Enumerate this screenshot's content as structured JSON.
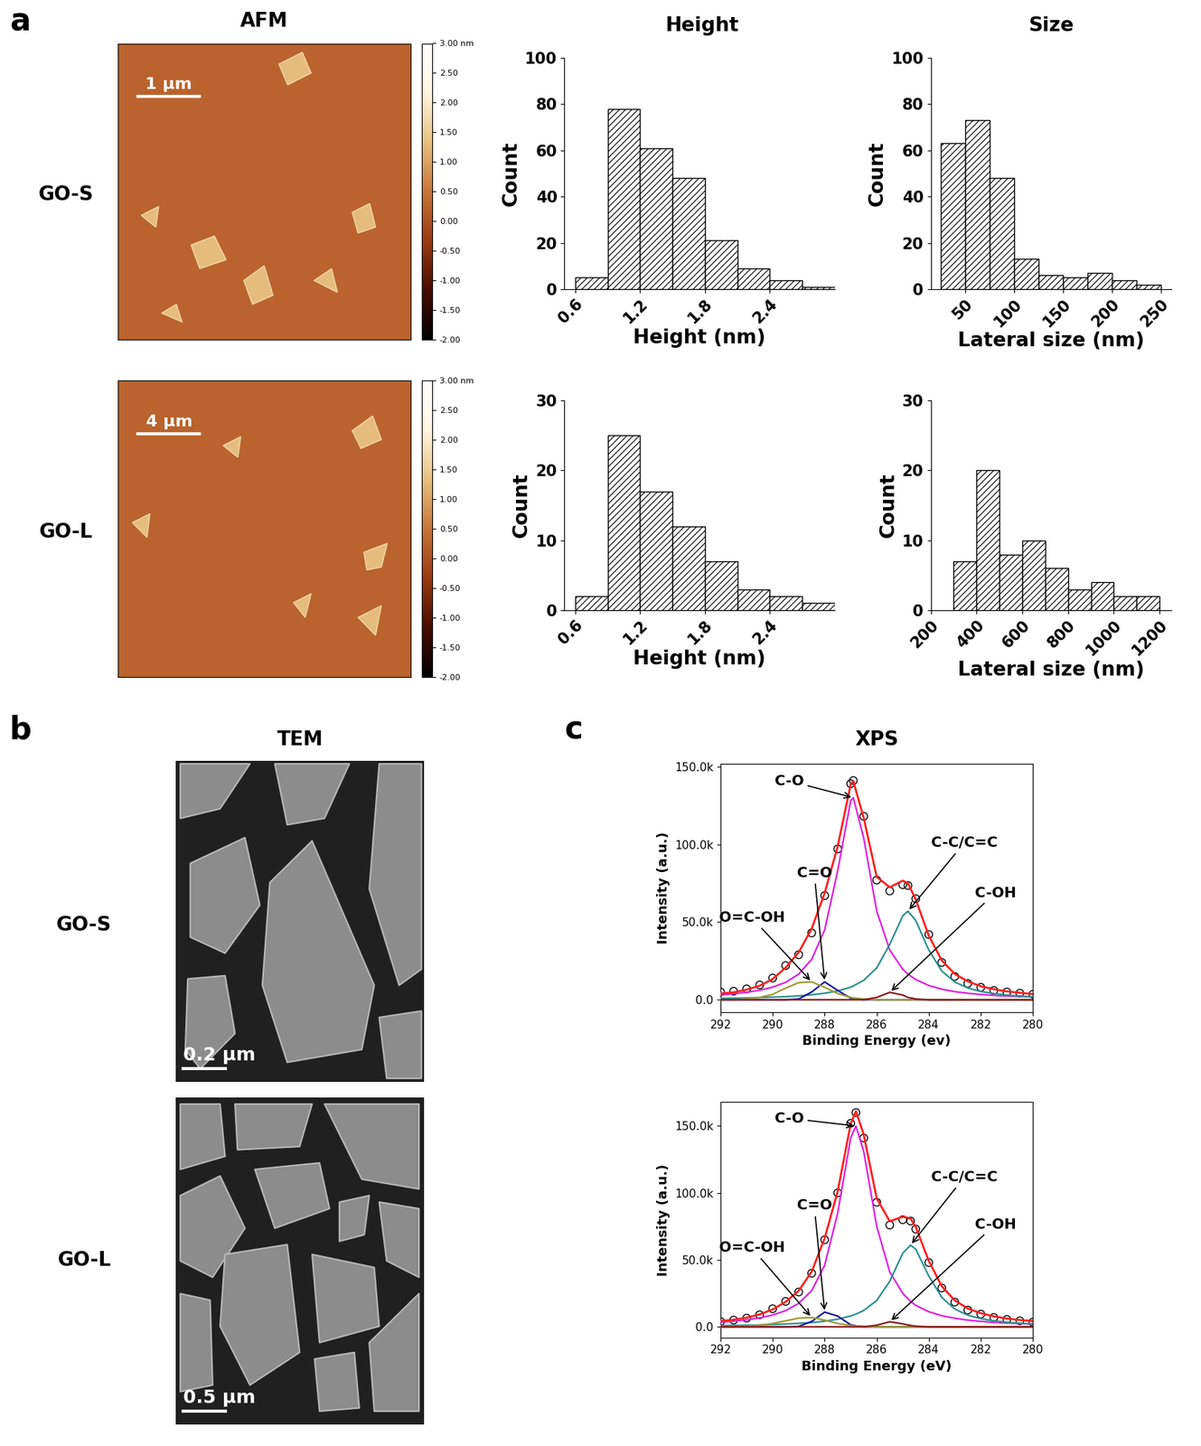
{
  "panel_labels": [
    "a",
    "b",
    "c"
  ],
  "headers": [
    "AFM",
    "Height",
    "Size",
    "TEM",
    "XPS"
  ],
  "row_labels": [
    "GO-S",
    "GO-L"
  ],
  "afm": [
    {
      "scale_bar": "1 μm",
      "clim": [
        -2,
        3
      ],
      "cticks": [
        {
          "value": 3,
          "label": "3.00 nm"
        },
        {
          "value": 2.5,
          "label": "2.50"
        },
        {
          "value": 2,
          "label": "2.00"
        },
        {
          "value": 1.5,
          "label": "1.50"
        },
        {
          "value": 1,
          "label": "1.00"
        },
        {
          "value": 0.5,
          "label": "0.50"
        },
        {
          "value": 0,
          "label": "0.00"
        },
        {
          "value": -0.5,
          "label": "-0.50"
        },
        {
          "value": -1,
          "label": "-1.00"
        },
        {
          "value": -1.5,
          "label": "-1.50"
        },
        {
          "value": -2,
          "label": "-2.00"
        }
      ]
    },
    {
      "scale_bar": "4 μm",
      "clim": [
        -2,
        3
      ],
      "cticks": [
        {
          "value": 3,
          "label": "3.00 nm"
        },
        {
          "value": 2.5,
          "label": "2.50"
        },
        {
          "value": 2,
          "label": "2.00"
        },
        {
          "value": 1.5,
          "label": "1.50"
        },
        {
          "value": 1,
          "label": "1.00"
        },
        {
          "value": 0.5,
          "label": "0.50"
        },
        {
          "value": 0,
          "label": "0.00"
        },
        {
          "value": -0.5,
          "label": "-0.50"
        },
        {
          "value": -1,
          "label": "-1.00"
        },
        {
          "value": -1.5,
          "label": "-1.50"
        },
        {
          "value": -2,
          "label": "-2.00"
        }
      ]
    }
  ],
  "tem": [
    {
      "scale_bar": "0.2 μm"
    },
    {
      "scale_bar": "0.5 μm"
    }
  ],
  "chart_data": [
    {
      "type": "histogram",
      "xlabel": "Height (nm)",
      "ylabel": "Count",
      "color": "#000000",
      "bins": [
        0.6,
        0.9,
        1.2,
        1.5,
        1.8,
        2.1,
        2.4,
        2.7,
        3.0
      ],
      "counts": [
        5,
        78,
        61,
        48,
        21,
        9,
        4,
        1
      ],
      "xlim": [
        0.5,
        3.0
      ],
      "xticks": [
        0.6,
        1.2,
        1.8,
        2.4
      ],
      "ylim": [
        0,
        100
      ],
      "yticks": [
        0,
        20,
        40,
        60,
        80,
        100
      ]
    },
    {
      "type": "histogram",
      "xlabel": "Lateral size (nm)",
      "ylabel": "Count",
      "color": "#000000",
      "bins": [
        25,
        50,
        75,
        100,
        125,
        150,
        175,
        200,
        225,
        250
      ],
      "counts": [
        63,
        73,
        48,
        13,
        6,
        5,
        7,
        4,
        2
      ],
      "xlim": [
        15,
        260
      ],
      "xticks": [
        50,
        100,
        150,
        200,
        250
      ],
      "ylim": [
        0,
        100
      ],
      "yticks": [
        0,
        20,
        40,
        60,
        80,
        100
      ]
    },
    {
      "type": "histogram",
      "xlabel": "Height (nm)",
      "ylabel": "Count",
      "color": "#000000",
      "bins": [
        0.6,
        0.9,
        1.2,
        1.5,
        1.8,
        2.1,
        2.4,
        2.7,
        3.0
      ],
      "counts": [
        2,
        25,
        17,
        12,
        7,
        3,
        2,
        1
      ],
      "xlim": [
        0.5,
        3.0
      ],
      "xticks": [
        0.6,
        1.2,
        1.8,
        2.4
      ],
      "ylim": [
        0,
        30
      ],
      "yticks": [
        0,
        10,
        20,
        30
      ]
    },
    {
      "type": "histogram",
      "xlabel": "Lateral size (nm)",
      "ylabel": "Count",
      "color": "#000000",
      "bins": [
        300,
        400,
        500,
        600,
        700,
        800,
        900,
        1000,
        1100,
        1200
      ],
      "counts": [
        7,
        20,
        8,
        10,
        6,
        3,
        4,
        2,
        2
      ],
      "xlim": [
        200,
        1250
      ],
      "xticks": [
        200,
        400,
        600,
        800,
        1000,
        1200
      ],
      "ylim": [
        0,
        30
      ],
      "yticks": [
        0,
        10,
        20,
        30
      ]
    },
    {
      "type": "line",
      "xlabel": "Binding Energy (ev)",
      "ylabel": "Intensity (a.u.)",
      "x": [
        292,
        291.5,
        291,
        290.5,
        290,
        289.5,
        289,
        288.5,
        288,
        287.5,
        287,
        286.9,
        286.5,
        286,
        285.5,
        285,
        284.8,
        284.5,
        284,
        283.5,
        283,
        282.5,
        282,
        281.5,
        281,
        280.5,
        280
      ],
      "xlim": [
        292,
        280
      ],
      "xticks": [
        292,
        290,
        288,
        286,
        284,
        282,
        280
      ],
      "ylim": [
        -8000,
        152000
      ],
      "yticks": [
        {
          "value": 0,
          "label": "0.0"
        },
        {
          "value": 50000,
          "label": "50.0k"
        },
        {
          "value": 100000,
          "label": "100.0k"
        },
        {
          "value": 150000,
          "label": "150.0k"
        }
      ],
      "series": [
        {
          "name": "C-O",
          "color": "#e020e0",
          "values": [
            3100,
            3800,
            4800,
            6100,
            8100,
            11200,
            16500,
            26000,
            45000,
            83000,
            128000,
            130000,
            104000,
            57000,
            32000,
            19600,
            16500,
            13000,
            9200,
            6800,
            5200,
            4200,
            3400,
            2800,
            2400,
            2100,
            1800
          ]
        },
        {
          "name": "C-C/C=C",
          "color": "#2a9090",
          "values": [
            900,
            1000,
            1200,
            1400,
            1700,
            2000,
            2500,
            3200,
            4200,
            5700,
            8100,
            8900,
            12500,
            20500,
            35600,
            54000,
            57000,
            51000,
            32000,
            18500,
            11400,
            7600,
            5300,
            4000,
            3000,
            2400,
            1900
          ]
        },
        {
          "name": "C=O",
          "color": "#1a1aa0",
          "values": [
            0,
            0,
            0,
            0,
            0,
            0,
            500,
            5000,
            11500,
            6000,
            1000,
            500,
            0,
            0,
            0,
            0,
            0,
            0,
            0,
            0,
            0,
            0,
            0,
            0,
            0,
            0,
            0
          ]
        },
        {
          "name": "O=C-OH",
          "color": "#9a9a30",
          "values": [
            0,
            0,
            500,
            1500,
            3500,
            7500,
            11000,
            11500,
            8000,
            4000,
            1500,
            1200,
            500,
            0,
            0,
            0,
            0,
            0,
            0,
            0,
            0,
            0,
            0,
            0,
            0,
            0,
            0
          ]
        },
        {
          "name": "C-OH",
          "color": "#8b1a1a",
          "values": [
            0,
            0,
            0,
            0,
            0,
            0,
            0,
            0,
            0,
            0,
            0,
            0,
            0,
            1500,
            4800,
            3000,
            1500,
            500,
            0,
            0,
            0,
            0,
            0,
            0,
            0,
            0,
            0
          ]
        },
        {
          "color": "#ff2020",
          "values": [
            4000,
            4800,
            6500,
            9000,
            13300,
            20700,
            30500,
            45700,
            68700,
            98700,
            138600,
            140600,
            117000,
            79000,
            72400,
            76600,
            75000,
            64500,
            41200,
            25300,
            16600,
            11800,
            8700,
            6800,
            5400,
            4500,
            3700
          ]
        },
        {
          "type": "scatter",
          "marker": "circle",
          "color": "#000000",
          "values": [
            5000,
            5500,
            7000,
            9500,
            14000,
            22000,
            29000,
            43000,
            67000,
            97000,
            139000,
            141000,
            118000,
            77000,
            70000,
            74000,
            73500,
            65000,
            42000,
            24000,
            15000,
            10500,
            8000,
            6000,
            5000,
            4200,
            3500
          ]
        }
      ]
    },
    {
      "type": "line",
      "xlabel": "Binding Energy (eV)",
      "ylabel": "Intensity (a.u.)",
      "x": [
        292,
        291.5,
        291,
        290.5,
        290,
        289.5,
        289,
        288.5,
        288,
        287.5,
        287,
        286.8,
        286.5,
        286,
        285.5,
        285,
        284.7,
        284.5,
        284,
        283.5,
        283,
        282.5,
        282,
        281.5,
        281,
        280.5,
        280
      ],
      "xlim": [
        292,
        280
      ],
      "xticks": [
        292,
        290,
        288,
        286,
        284,
        282,
        280
      ],
      "ylim": [
        -8000,
        168000
      ],
      "yticks": [
        {
          "value": 0,
          "label": "0.0"
        },
        {
          "value": 50000,
          "label": "50.0k"
        },
        {
          "value": 100000,
          "label": "100.0k"
        },
        {
          "value": 150000,
          "label": "150.0k"
        }
      ],
      "series": [
        {
          "name": "C-O",
          "color": "#e020e0",
          "values": [
            3500,
            4200,
            5200,
            6700,
            8800,
            12100,
            17500,
            27000,
            46000,
            85000,
            141000,
            150000,
            131000,
            75000,
            41000,
            25000,
            19000,
            16000,
            11300,
            8300,
            6400,
            5000,
            4100,
            3300,
            2800,
            2400,
            2100
          ]
        },
        {
          "name": "C-C/C=C",
          "color": "#2a9090",
          "values": [
            900,
            1050,
            1200,
            1400,
            1700,
            2100,
            2600,
            3200,
            4200,
            5700,
            8100,
            9500,
            12200,
            19700,
            34000,
            55000,
            61000,
            58000,
            38000,
            22000,
            13300,
            8700,
            6100,
            4500,
            3400,
            2700,
            2200
          ]
        },
        {
          "name": "C=O",
          "color": "#1a1aa0",
          "values": [
            0,
            0,
            0,
            0,
            0,
            0,
            300,
            4000,
            11000,
            8000,
            1500,
            800,
            0,
            0,
            0,
            0,
            0,
            0,
            0,
            0,
            0,
            0,
            0,
            0,
            0,
            0,
            0
          ]
        },
        {
          "name": "O=C-OH",
          "color": "#9a9a30",
          "values": [
            0,
            0,
            500,
            1200,
            2500,
            4500,
            6500,
            7000,
            5000,
            2500,
            1000,
            700,
            400,
            0,
            0,
            0,
            0,
            0,
            0,
            0,
            0,
            0,
            0,
            0,
            0,
            0,
            0
          ]
        },
        {
          "name": "C-OH",
          "color": "#8b1a1a",
          "values": [
            0,
            0,
            0,
            0,
            0,
            0,
            0,
            0,
            0,
            0,
            0,
            0,
            0,
            1200,
            3800,
            2200,
            1000,
            500,
            0,
            0,
            0,
            0,
            0,
            0,
            0,
            0,
            0
          ]
        },
        {
          "color": "#ff2020",
          "values": [
            4400,
            5300,
            6900,
            9300,
            13000,
            18700,
            26900,
            41200,
            66200,
            101200,
            151600,
            161000,
            143600,
            95900,
            78800,
            82200,
            81000,
            74500,
            49300,
            30300,
            19700,
            13700,
            10200,
            7800,
            6200,
            5100,
            4300
          ]
        },
        {
          "type": "scatter",
          "marker": "circle",
          "color": "#000000",
          "values": [
            4000,
            5000,
            6500,
            9000,
            13500,
            19000,
            26000,
            40000,
            65000,
            100000,
            152000,
            160000,
            141000,
            93000,
            76000,
            80000,
            79000,
            73000,
            48000,
            29000,
            18500,
            12500,
            9500,
            7000,
            5500,
            4500,
            3500
          ]
        }
      ]
    }
  ]
}
